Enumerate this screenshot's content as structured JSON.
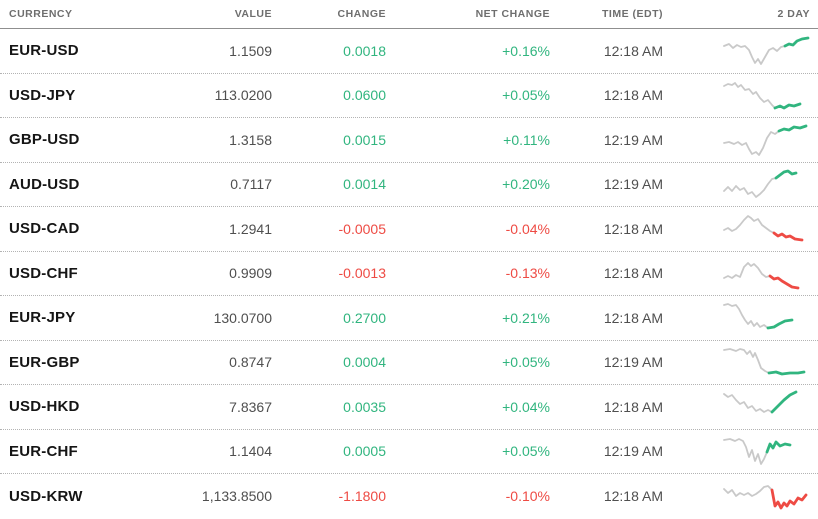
{
  "table": {
    "columns": [
      {
        "key": "currency",
        "label": "CURRENCY"
      },
      {
        "key": "value",
        "label": "VALUE"
      },
      {
        "key": "change",
        "label": "CHANGE"
      },
      {
        "key": "net_change",
        "label": "NET CHANGE"
      },
      {
        "key": "time",
        "label": "TIME (EDT)"
      },
      {
        "key": "two_day",
        "label": "2 DAY"
      }
    ],
    "rows": [
      {
        "currency": "EUR-USD",
        "value": "1.1509",
        "change": "0.0018",
        "net_change": "+0.16%",
        "time": "12:18 AM",
        "direction": "up",
        "spark": {
          "gray": [
            [
              2,
              13
            ],
            [
              7,
              11
            ],
            [
              11,
              15
            ],
            [
              15,
              12
            ],
            [
              19,
              14
            ],
            [
              23,
              13
            ],
            [
              27,
              17
            ],
            [
              30,
              24
            ],
            [
              33,
              30
            ],
            [
              36,
              26
            ],
            [
              39,
              31
            ],
            [
              43,
              24
            ],
            [
              47,
              17
            ],
            [
              51,
              15
            ],
            [
              55,
              18
            ],
            [
              59,
              14
            ],
            [
              63,
              13
            ]
          ],
          "tail": [
            [
              63,
              13
            ],
            [
              67,
              11
            ],
            [
              71,
              12
            ],
            [
              75,
              8
            ],
            [
              80,
              6
            ],
            [
              86,
              5
            ]
          ]
        }
      },
      {
        "currency": "USD-JPY",
        "value": "113.0200",
        "change": "0.0600",
        "net_change": "+0.05%",
        "time": "12:18 AM",
        "direction": "up",
        "spark": {
          "gray": [
            [
              2,
              9
            ],
            [
              6,
              7
            ],
            [
              10,
              8
            ],
            [
              13,
              6
            ],
            [
              16,
              10
            ],
            [
              19,
              8
            ],
            [
              23,
              13
            ],
            [
              27,
              12
            ],
            [
              31,
              17
            ],
            [
              34,
              15
            ],
            [
              38,
              21
            ],
            [
              42,
              25
            ],
            [
              46,
              23
            ],
            [
              50,
              28
            ],
            [
              53,
              31
            ]
          ],
          "tail": [
            [
              53,
              31
            ],
            [
              58,
              29
            ],
            [
              62,
              31
            ],
            [
              67,
              28
            ],
            [
              72,
              29
            ],
            [
              78,
              27
            ]
          ]
        }
      },
      {
        "currency": "GBP-USD",
        "value": "1.3158",
        "change": "0.0015",
        "net_change": "+0.11%",
        "time": "12:19 AM",
        "direction": "up",
        "spark": {
          "gray": [
            [
              2,
              21
            ],
            [
              7,
              20
            ],
            [
              12,
              22
            ],
            [
              16,
              20
            ],
            [
              20,
              23
            ],
            [
              24,
              21
            ],
            [
              27,
              27
            ],
            [
              30,
              32
            ],
            [
              34,
              30
            ],
            [
              37,
              33
            ],
            [
              41,
              26
            ],
            [
              45,
              16
            ],
            [
              49,
              10
            ],
            [
              53,
              12
            ],
            [
              57,
              9
            ]
          ],
          "tail": [
            [
              57,
              9
            ],
            [
              62,
              7
            ],
            [
              67,
              8
            ],
            [
              72,
              5
            ],
            [
              78,
              6
            ],
            [
              84,
              4
            ]
          ]
        }
      },
      {
        "currency": "AUD-USD",
        "value": "0.7117",
        "change": "0.0014",
        "net_change": "+0.20%",
        "time": "12:19 AM",
        "direction": "up",
        "spark": {
          "gray": [
            [
              2,
              25
            ],
            [
              6,
              21
            ],
            [
              10,
              25
            ],
            [
              14,
              20
            ],
            [
              18,
              24
            ],
            [
              22,
              22
            ],
            [
              26,
              28
            ],
            [
              30,
              26
            ],
            [
              34,
              31
            ],
            [
              38,
              28
            ],
            [
              42,
              24
            ],
            [
              46,
              18
            ],
            [
              50,
              13
            ],
            [
              54,
              12
            ]
          ],
          "tail": [
            [
              54,
              12
            ],
            [
              58,
              9
            ],
            [
              62,
              6
            ],
            [
              66,
              5
            ],
            [
              70,
              8
            ],
            [
              74,
              7
            ]
          ]
        }
      },
      {
        "currency": "USD-CAD",
        "value": "1.2941",
        "change": "-0.0005",
        "net_change": "-0.04%",
        "time": "12:18 AM",
        "direction": "down",
        "spark": {
          "gray": [
            [
              2,
              19
            ],
            [
              6,
              17
            ],
            [
              10,
              20
            ],
            [
              14,
              18
            ],
            [
              18,
              14
            ],
            [
              22,
              9
            ],
            [
              26,
              5
            ],
            [
              29,
              7
            ],
            [
              32,
              10
            ],
            [
              36,
              8
            ],
            [
              40,
              14
            ],
            [
              44,
              17
            ],
            [
              48,
              20
            ],
            [
              52,
              22
            ]
          ],
          "tail": [
            [
              52,
              22
            ],
            [
              56,
              25
            ],
            [
              60,
              23
            ],
            [
              64,
              26
            ],
            [
              68,
              25
            ],
            [
              73,
              28
            ],
            [
              80,
              29
            ]
          ]
        }
      },
      {
        "currency": "USD-CHF",
        "value": "0.9909",
        "change": "-0.0013",
        "net_change": "-0.13%",
        "time": "12:18 AM",
        "direction": "down",
        "spark": {
          "gray": [
            [
              2,
              23
            ],
            [
              6,
              21
            ],
            [
              10,
              23
            ],
            [
              14,
              20
            ],
            [
              18,
              22
            ],
            [
              22,
              12
            ],
            [
              26,
              8
            ],
            [
              29,
              11
            ],
            [
              32,
              9
            ],
            [
              36,
              13
            ],
            [
              40,
              19
            ],
            [
              44,
              22
            ],
            [
              48,
              21
            ]
          ],
          "tail": [
            [
              48,
              21
            ],
            [
              52,
              24
            ],
            [
              56,
              23
            ],
            [
              60,
              26
            ],
            [
              65,
              29
            ],
            [
              70,
              32
            ],
            [
              76,
              33
            ]
          ]
        }
      },
      {
        "currency": "EUR-JPY",
        "value": "130.0700",
        "change": "0.2700",
        "net_change": "+0.21%",
        "time": "12:18 AM",
        "direction": "up",
        "spark": {
          "gray": [
            [
              2,
              5
            ],
            [
              6,
              4
            ],
            [
              10,
              6
            ],
            [
              14,
              5
            ],
            [
              17,
              9
            ],
            [
              20,
              15
            ],
            [
              23,
              20
            ],
            [
              26,
              24
            ],
            [
              29,
              21
            ],
            [
              32,
              26
            ],
            [
              35,
              23
            ],
            [
              38,
              27
            ],
            [
              42,
              25
            ],
            [
              46,
              28
            ]
          ],
          "tail": [
            [
              46,
              28
            ],
            [
              52,
              27
            ],
            [
              57,
              24
            ],
            [
              63,
              21
            ],
            [
              70,
              20
            ]
          ]
        }
      },
      {
        "currency": "EUR-GBP",
        "value": "0.8747",
        "change": "0.0004",
        "net_change": "+0.05%",
        "time": "12:19 AM",
        "direction": "up",
        "spark": {
          "gray": [
            [
              2,
              6
            ],
            [
              8,
              5
            ],
            [
              14,
              7
            ],
            [
              18,
              5
            ],
            [
              22,
              6
            ],
            [
              25,
              10
            ],
            [
              28,
              7
            ],
            [
              31,
              13
            ],
            [
              33,
              9
            ],
            [
              36,
              16
            ],
            [
              39,
              24
            ],
            [
              43,
              27
            ],
            [
              47,
              29
            ]
          ],
          "tail": [
            [
              47,
              29
            ],
            [
              54,
              28
            ],
            [
              60,
              30
            ],
            [
              68,
              29
            ],
            [
              76,
              29
            ],
            [
              82,
              28
            ]
          ]
        }
      },
      {
        "currency": "USD-HKD",
        "value": "7.8367",
        "change": "0.0035",
        "net_change": "+0.04%",
        "time": "12:18 AM",
        "direction": "up",
        "spark": {
          "gray": [
            [
              2,
              5
            ],
            [
              6,
              8
            ],
            [
              10,
              6
            ],
            [
              14,
              11
            ],
            [
              18,
              15
            ],
            [
              22,
              13
            ],
            [
              26,
              19
            ],
            [
              30,
              17
            ],
            [
              34,
              22
            ],
            [
              38,
              20
            ],
            [
              42,
              23
            ],
            [
              46,
              21
            ],
            [
              50,
              23
            ]
          ],
          "tail": [
            [
              50,
              23
            ],
            [
              56,
              17
            ],
            [
              62,
              11
            ],
            [
              68,
              6
            ],
            [
              74,
              3
            ]
          ]
        }
      },
      {
        "currency": "EUR-CHF",
        "value": "1.1404",
        "change": "0.0005",
        "net_change": "+0.05%",
        "time": "12:19 AM",
        "direction": "up",
        "spark": {
          "gray": [
            [
              2,
              7
            ],
            [
              8,
              6
            ],
            [
              13,
              8
            ],
            [
              17,
              6
            ],
            [
              21,
              8
            ],
            [
              24,
              14
            ],
            [
              27,
              24
            ],
            [
              30,
              17
            ],
            [
              33,
              28
            ],
            [
              36,
              21
            ],
            [
              39,
              31
            ],
            [
              42,
              26
            ],
            [
              45,
              19
            ]
          ],
          "tail": [
            [
              45,
              19
            ],
            [
              48,
              11
            ],
            [
              51,
              15
            ],
            [
              54,
              9
            ],
            [
              58,
              13
            ],
            [
              63,
              11
            ],
            [
              68,
              12
            ]
          ]
        }
      },
      {
        "currency": "USD-KRW",
        "value": "1,133.8500",
        "change": "-1.1800",
        "net_change": "-0.10%",
        "time": "12:18 AM",
        "direction": "down",
        "spark": {
          "gray": [
            [
              2,
              11
            ],
            [
              6,
              15
            ],
            [
              10,
              12
            ],
            [
              14,
              18
            ],
            [
              18,
              15
            ],
            [
              22,
              17
            ],
            [
              26,
              15
            ],
            [
              30,
              18
            ],
            [
              34,
              16
            ],
            [
              38,
              13
            ],
            [
              42,
              9
            ],
            [
              46,
              8
            ],
            [
              50,
              12
            ]
          ],
          "tail": [
            [
              50,
              12
            ],
            [
              53,
              28
            ],
            [
              56,
              24
            ],
            [
              59,
              30
            ],
            [
              62,
              25
            ],
            [
              65,
              28
            ],
            [
              68,
              23
            ],
            [
              72,
              26
            ],
            [
              76,
              20
            ],
            [
              80,
              22
            ],
            [
              84,
              17
            ]
          ]
        }
      }
    ]
  },
  "colors": {
    "up": "#31b57f",
    "down": "#ee4b44",
    "spark_gray": "#c9c9c9",
    "pair_text": "#151515",
    "value_text": "#4f4f4f",
    "header_text": "#6e6e6e"
  }
}
